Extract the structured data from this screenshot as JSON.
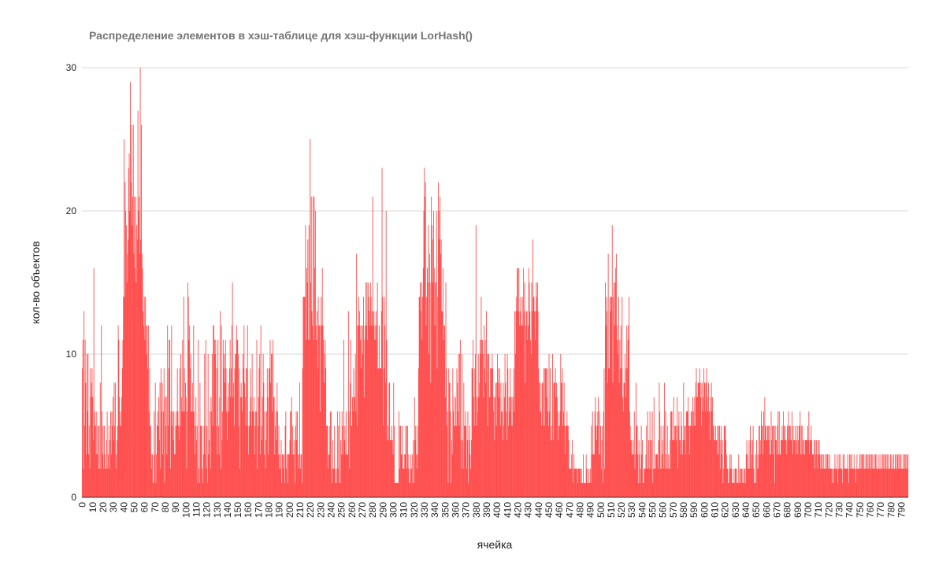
{
  "chart_data": {
    "type": "bar",
    "title": "Распределение элементов в хэш-таблице для хэш-функции LorHash()",
    "xlabel": "ячейка",
    "ylabel": "кол-во объектов",
    "ylim": [
      0,
      30
    ],
    "yticks": [
      "0",
      "10",
      "20",
      "30"
    ],
    "grid": true,
    "legend": "none",
    "bar_color": "#ff4d4d",
    "x_range": [
      0,
      797
    ],
    "xtick_step": 10,
    "xticks": [
      "0",
      "10",
      "20",
      "30",
      "40",
      "50",
      "60",
      "70",
      "80",
      "90",
      "100",
      "110",
      "120",
      "130",
      "140",
      "150",
      "160",
      "170",
      "180",
      "190",
      "200",
      "210",
      "220",
      "230",
      "240",
      "250",
      "260",
      "270",
      "280",
      "290",
      "300",
      "310",
      "320",
      "330",
      "340",
      "350",
      "360",
      "370",
      "380",
      "390",
      "400",
      "410",
      "420",
      "430",
      "440",
      "450",
      "460",
      "470",
      "480",
      "490",
      "500",
      "510",
      "520",
      "530",
      "540",
      "550",
      "560",
      "570",
      "580",
      "590",
      "600",
      "610",
      "620",
      "630",
      "640",
      "650",
      "660",
      "670",
      "680",
      "690",
      "700",
      "710",
      "720",
      "730",
      "740",
      "750",
      "760",
      "770",
      "780",
      "790"
    ],
    "values": [
      9,
      11,
      2,
      13,
      5,
      11,
      8,
      3,
      10,
      6,
      10,
      3,
      5,
      2,
      9,
      7,
      8,
      9,
      7,
      4,
      16,
      5,
      6,
      5,
      3,
      6,
      3,
      5,
      2,
      5,
      2,
      8,
      2,
      12,
      6,
      3,
      5,
      2,
      5,
      3,
      2,
      2,
      4,
      6,
      2,
      3,
      5,
      2,
      4,
      6,
      3,
      6,
      5,
      7,
      4,
      8,
      5,
      8,
      2,
      3,
      4,
      5,
      12,
      11,
      7,
      5,
      6,
      5,
      7,
      9,
      11,
      14,
      25,
      14,
      22,
      20,
      19,
      15,
      17,
      18,
      23,
      24,
      20,
      29,
      22,
      26,
      19,
      21,
      26,
      17,
      21,
      16,
      21,
      15,
      19,
      18,
      27,
      20,
      21,
      17,
      30,
      18,
      26,
      17,
      16,
      13,
      12,
      14,
      11,
      14,
      12,
      10,
      12,
      9,
      12,
      6,
      9,
      5,
      5,
      3,
      2,
      3,
      1,
      1,
      6,
      3,
      8,
      1,
      3,
      5,
      6,
      5,
      7,
      4,
      8,
      2,
      9,
      6,
      8,
      3,
      6,
      9,
      1,
      7,
      5,
      7,
      3,
      12,
      5,
      9,
      11,
      11,
      2,
      6,
      12,
      5,
      6,
      4,
      6,
      3,
      3,
      5,
      6,
      5,
      9,
      6,
      5,
      4,
      9,
      5,
      10,
      7,
      6,
      11,
      6,
      14,
      9,
      6,
      8,
      7,
      2,
      6,
      15,
      14,
      11,
      12,
      9,
      10,
      6,
      6,
      8,
      6,
      12,
      6,
      3,
      5,
      7,
      4,
      5,
      1,
      11,
      2,
      1,
      8,
      5,
      5,
      5,
      2,
      1,
      3,
      5,
      10,
      3,
      11,
      2,
      5,
      1,
      10,
      3,
      4,
      6,
      2,
      7,
      6,
      10,
      5,
      12,
      12,
      11,
      10,
      11,
      5,
      9,
      3,
      11,
      5,
      3,
      7,
      13,
      2,
      12,
      4,
      6,
      11,
      9,
      10,
      8,
      11,
      9,
      6,
      4,
      7,
      8,
      6,
      9,
      11,
      7,
      9,
      12,
      15,
      7,
      8,
      5,
      9,
      10,
      10,
      12,
      11,
      11,
      10,
      5,
      9,
      2,
      7,
      8,
      7,
      6,
      10,
      9,
      12,
      8,
      7,
      5,
      9,
      9,
      12,
      5,
      3,
      5,
      6,
      9,
      7,
      5,
      10,
      6,
      6,
      7,
      3,
      5,
      6,
      6,
      11,
      2,
      5,
      7,
      9,
      10,
      3,
      12,
      5,
      4,
      7,
      10,
      8,
      3,
      6,
      2,
      4,
      6,
      9,
      7,
      3,
      9,
      9,
      11,
      8,
      10,
      10,
      6,
      11,
      7,
      7,
      3,
      5,
      6,
      4,
      8,
      6,
      3,
      5,
      2,
      3,
      2,
      4,
      1,
      3,
      3,
      2,
      3,
      1,
      5,
      6,
      2,
      3,
      1,
      3,
      3,
      3,
      4,
      6,
      6,
      7,
      3,
      5,
      3,
      3,
      4,
      1,
      5,
      6,
      4,
      6,
      3,
      2,
      3,
      8,
      2,
      3,
      3,
      1,
      9,
      14,
      14,
      14,
      14,
      19,
      11,
      16,
      15,
      18,
      11,
      19,
      11,
      25,
      15,
      21,
      13,
      12,
      21,
      11,
      21,
      16,
      20,
      12,
      11,
      13,
      9,
      14,
      12,
      12,
      6,
      12,
      14,
      12,
      16,
      12,
      11,
      8,
      10,
      11,
      9,
      5,
      5,
      5,
      2,
      3,
      3,
      5,
      6,
      6,
      2,
      1,
      4,
      2,
      2,
      5,
      2,
      1,
      1,
      2,
      6,
      2,
      5,
      1,
      6,
      1,
      4,
      3,
      6,
      5,
      3,
      11,
      4,
      5,
      3,
      6,
      3,
      3,
      3,
      13,
      6,
      2,
      8,
      11,
      5,
      5,
      7,
      6,
      9,
      7,
      7,
      10,
      6,
      17,
      5,
      12,
      12,
      14,
      13,
      12,
      11,
      9,
      12,
      12,
      10,
      14,
      7,
      11,
      12,
      15,
      12,
      15,
      11,
      15,
      14,
      13,
      12,
      15,
      14,
      12,
      13,
      21,
      12,
      13,
      11,
      12,
      11,
      13,
      12,
      15,
      9,
      9,
      12,
      9,
      9,
      9,
      13,
      23,
      14,
      5,
      9,
      14,
      12,
      8,
      20,
      11,
      4,
      5,
      4,
      8,
      8,
      4,
      4,
      4,
      5,
      4,
      3,
      8,
      5,
      1,
      1,
      1,
      1,
      1,
      1,
      1,
      6,
      2,
      5,
      5,
      3,
      3,
      5,
      2,
      2,
      2,
      3,
      3,
      5,
      5,
      2,
      5,
      3,
      2,
      1,
      1,
      3,
      2,
      2,
      3,
      1,
      4,
      1,
      7,
      4,
      5,
      3,
      2,
      5,
      3,
      9,
      14,
      14,
      15,
      13,
      15,
      11,
      14,
      16,
      20,
      23,
      21,
      22,
      12,
      14,
      16,
      15,
      19,
      10,
      17,
      15,
      8,
      21,
      19,
      18,
      15,
      20,
      16,
      12,
      15,
      15,
      20,
      9,
      14,
      22,
      18,
      20,
      21,
      17,
      18,
      13,
      13,
      16,
      11,
      12,
      12,
      7,
      15,
      9,
      5,
      6,
      1,
      9,
      8,
      8,
      6,
      1,
      4,
      3,
      9,
      6,
      7,
      5,
      5,
      7,
      5,
      9,
      8,
      6,
      10,
      5,
      10,
      11,
      4,
      2,
      10,
      4,
      2,
      8,
      5,
      5,
      6,
      5,
      2,
      4,
      6,
      1,
      4,
      5,
      3,
      2,
      4,
      9,
      9,
      11,
      7,
      5,
      9,
      10,
      19,
      5,
      7,
      6,
      10,
      7,
      8,
      11,
      10,
      14,
      11,
      11,
      10,
      7,
      12,
      9,
      11,
      8,
      13,
      10,
      5,
      10,
      10,
      7,
      7,
      9,
      9,
      9,
      10,
      9,
      6,
      7,
      4,
      7,
      8,
      5,
      8,
      10,
      9,
      8,
      7,
      9,
      5,
      8,
      6,
      6,
      4,
      8,
      5,
      7,
      10,
      8,
      6,
      4,
      10,
      9,
      5,
      7,
      6,
      9,
      7,
      5,
      7,
      5,
      7,
      9,
      6,
      13,
      10,
      13,
      14,
      16,
      16,
      13,
      16,
      12,
      13,
      14,
      12,
      12,
      14,
      12,
      16,
      13,
      15,
      8,
      12,
      13,
      13,
      11,
      12,
      16,
      15,
      13,
      11,
      10,
      15,
      13,
      18,
      14,
      14,
      13,
      11,
      13,
      15,
      14,
      15,
      13,
      9,
      8,
      6,
      8,
      6,
      5,
      8,
      8,
      5,
      9,
      5,
      9,
      9,
      9,
      7,
      9,
      6,
      5,
      10,
      6,
      9,
      4,
      5,
      4,
      10,
      4,
      8,
      8,
      8,
      9,
      7,
      8,
      7,
      6,
      4,
      5,
      5,
      6,
      10,
      8,
      8,
      9,
      5,
      6,
      8,
      5,
      3,
      5,
      5,
      6,
      5,
      5,
      4,
      2,
      2,
      2,
      2,
      3,
      4,
      1,
      2,
      3,
      2,
      2,
      2,
      2,
      2,
      1,
      2,
      2,
      2,
      2,
      2,
      1,
      2,
      1,
      1,
      3,
      1,
      1,
      1,
      1,
      3,
      2,
      1,
      1,
      2,
      1,
      1,
      2,
      1,
      5,
      3,
      6,
      3,
      3,
      3,
      6,
      7,
      5,
      4,
      5,
      6,
      7,
      3,
      6,
      3,
      5,
      2,
      4,
      5,
      1,
      6,
      9,
      2,
      15,
      12,
      14,
      13,
      8,
      17,
      9,
      9,
      14,
      13,
      14,
      14,
      19,
      8,
      14,
      15,
      12,
      15,
      16,
      17,
      12,
      11,
      10,
      14,
      8,
      11,
      9,
      12,
      9,
      14,
      7,
      6,
      8,
      8,
      10,
      7,
      9,
      12,
      9,
      11,
      12,
      14,
      6,
      5,
      4,
      4,
      3,
      3,
      4,
      3,
      6,
      2,
      3,
      8,
      5,
      5,
      3,
      1,
      4,
      3,
      1,
      2,
      5,
      3,
      4,
      1,
      1,
      2,
      2,
      2,
      3,
      5,
      2,
      6,
      2,
      4,
      2,
      6,
      4,
      2,
      4,
      6,
      1,
      2,
      7,
      2,
      2,
      3,
      3,
      3,
      3,
      2,
      4,
      8,
      6,
      2,
      5,
      2,
      3,
      4,
      5,
      2,
      8,
      2,
      6,
      3,
      2,
      5,
      2,
      3,
      2,
      2,
      4,
      6,
      6,
      6,
      4,
      4,
      7,
      4,
      5,
      5,
      4,
      5,
      7,
      2,
      5,
      6,
      4,
      4,
      3,
      6,
      5,
      3,
      4,
      8,
      4,
      5,
      5,
      3,
      6,
      6,
      6,
      7,
      5,
      3,
      5,
      5,
      6,
      6,
      5,
      7,
      6,
      5,
      7,
      5,
      8,
      9,
      7,
      7,
      8,
      8,
      8,
      9,
      7,
      8,
      5,
      8,
      6,
      7,
      9,
      8,
      8,
      6,
      8,
      9,
      7,
      6,
      8,
      6,
      6,
      4,
      7,
      8,
      6,
      7,
      5,
      5,
      4,
      4,
      5,
      4,
      4,
      3,
      5,
      5,
      3,
      5,
      2,
      4,
      5,
      3,
      4,
      1,
      2,
      5,
      5,
      5,
      4,
      3,
      2,
      2,
      1,
      1,
      2,
      3,
      2,
      3,
      2,
      1,
      1,
      1,
      2,
      1,
      2,
      2,
      2,
      1,
      1,
      1,
      3,
      1,
      2,
      1,
      2,
      2,
      1,
      2,
      1,
      1,
      2,
      2,
      1,
      3,
      4,
      3,
      2,
      2,
      4,
      2,
      5,
      4,
      2,
      3,
      4,
      5,
      2,
      1,
      1,
      3,
      1,
      4,
      2,
      3,
      2,
      5,
      5,
      3,
      4,
      6,
      5,
      5,
      3,
      6,
      4,
      7,
      5,
      5,
      4,
      4,
      5,
      5,
      4,
      5,
      3,
      3,
      6,
      4,
      5,
      3,
      5,
      5,
      1,
      5,
      4,
      4,
      3,
      5,
      6,
      3,
      6,
      3,
      3,
      4,
      4,
      5,
      4,
      6,
      4,
      5,
      5,
      4,
      4,
      3,
      5,
      5,
      6,
      4,
      5,
      5,
      4,
      4,
      6,
      3,
      5,
      4,
      4,
      4,
      5,
      3,
      4,
      5,
      3,
      4,
      5,
      5,
      6,
      3,
      5,
      3,
      5,
      4,
      3,
      4,
      3,
      4,
      4,
      4,
      4,
      5,
      4,
      6,
      3,
      4,
      4,
      5,
      4,
      3,
      3,
      3,
      4,
      2,
      4,
      3,
      4,
      3,
      2,
      4,
      3,
      4,
      3,
      2,
      3,
      2,
      3,
      2,
      3,
      2,
      2,
      3,
      2,
      2,
      3,
      3,
      3,
      2,
      2,
      3,
      2,
      2,
      2,
      1,
      2,
      2,
      1,
      2,
      3,
      2,
      2,
      2,
      3,
      1,
      2,
      3,
      2,
      3,
      2,
      2,
      2,
      1,
      3,
      2,
      3,
      2,
      2,
      2,
      2,
      2,
      3,
      2,
      1,
      3,
      2,
      3,
      2,
      3,
      2,
      2,
      2,
      3,
      2,
      2,
      1,
      2,
      3,
      2,
      2,
      2,
      2,
      3,
      2,
      3,
      2,
      3,
      3,
      2,
      3,
      2,
      2,
      3,
      2,
      3,
      2,
      3,
      2,
      3,
      2,
      3,
      2,
      3,
      2,
      3,
      2,
      2,
      3,
      2,
      3,
      2,
      3,
      2,
      2,
      2,
      3,
      2,
      2,
      3,
      2,
      2,
      3,
      2,
      3,
      2,
      3,
      2,
      3,
      2,
      3,
      2,
      3,
      2,
      2,
      2,
      3,
      2,
      3,
      2,
      2,
      3,
      2,
      2,
      3,
      2,
      3,
      2,
      3,
      2,
      3,
      2,
      3,
      2,
      3,
      2,
      2,
      2,
      3,
      2,
      3,
      2,
      3,
      2,
      3,
      2,
      3
    ]
  }
}
